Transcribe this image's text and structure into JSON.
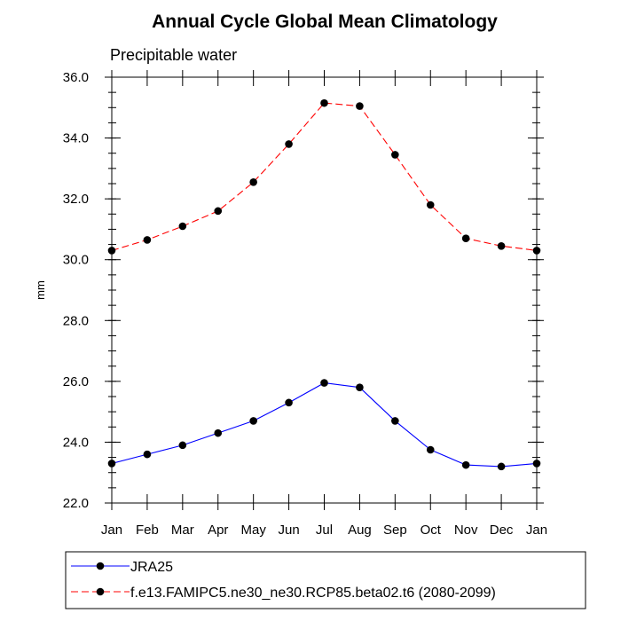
{
  "chart_data": {
    "type": "line",
    "title": "Annual Cycle Global Mean Climatology",
    "subtitle": "Precipitable water",
    "xlabel": "",
    "ylabel": "mm",
    "categories": [
      "Jan",
      "Feb",
      "Mar",
      "Apr",
      "May",
      "Jun",
      "Jul",
      "Aug",
      "Sep",
      "Oct",
      "Nov",
      "Dec",
      "Jan"
    ],
    "ylim": [
      22.0,
      36.0
    ],
    "yticks": [
      "22.0",
      "24.0",
      "26.0",
      "28.0",
      "30.0",
      "32.0",
      "34.0",
      "36.0"
    ],
    "ytick_values": [
      22,
      24,
      26,
      28,
      30,
      32,
      34,
      36
    ],
    "grid": false,
    "legend_position": "bottom",
    "series": [
      {
        "name": "JRA25",
        "color": "#0000ff",
        "dashed": false,
        "values": [
          23.3,
          23.6,
          23.9,
          24.3,
          24.7,
          25.3,
          25.95,
          25.8,
          24.7,
          23.75,
          23.25,
          23.2,
          23.3
        ]
      },
      {
        "name": "f.e13.FAMIPC5.ne30_ne30.RCP85.beta02.t6 (2080-2099)",
        "color": "#ff0000",
        "dashed": true,
        "values": [
          30.3,
          30.65,
          31.1,
          31.6,
          32.55,
          33.8,
          35.15,
          35.05,
          33.45,
          31.8,
          30.7,
          30.45,
          30.3
        ]
      }
    ]
  }
}
